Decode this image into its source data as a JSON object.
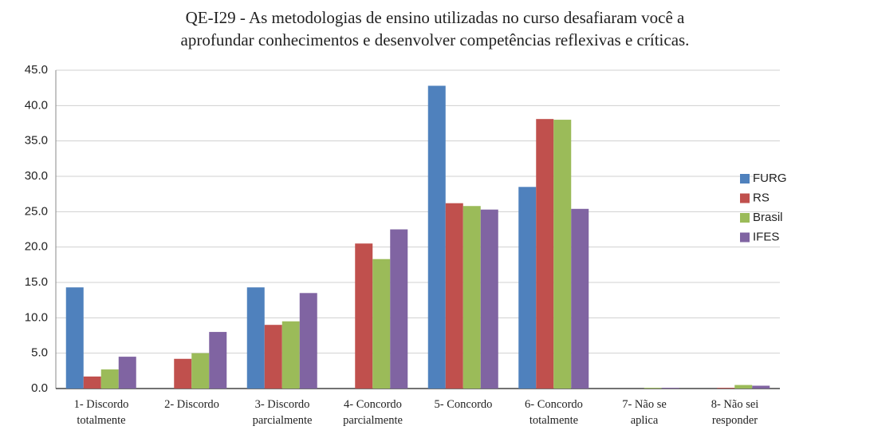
{
  "chart_data": {
    "type": "bar",
    "title": "QE-I29 - As metodologias de ensino utilizadas no curso desafiaram você a\naprofundar conhecimentos e desenvolver competências reflexivas e críticas.",
    "categories": [
      "1- Discordo\ntotalmente",
      "2- Discordo",
      "3- Discordo\nparcialmente",
      "4- Concordo\nparcialmente",
      "5- Concordo",
      "6- Concordo\ntotalmente",
      "7- Não se\naplica",
      "8- Não sei\nresponder"
    ],
    "series": [
      {
        "name": "FURG",
        "color": "#4f81bd",
        "values": [
          14.3,
          0,
          14.3,
          0,
          42.8,
          28.5,
          0,
          0
        ]
      },
      {
        "name": "RS",
        "color": "#c0504d",
        "values": [
          1.7,
          4.2,
          9.0,
          20.5,
          26.2,
          38.1,
          0,
          0.1
        ]
      },
      {
        "name": "Brasil",
        "color": "#9bbb59",
        "values": [
          2.7,
          5.0,
          9.5,
          18.3,
          25.8,
          38.0,
          0.1,
          0.5
        ]
      },
      {
        "name": "IFES",
        "color": "#8064a2",
        "values": [
          4.5,
          8.0,
          13.5,
          22.5,
          25.3,
          25.4,
          0.1,
          0.4
        ]
      }
    ],
    "ylim": [
      0,
      45
    ],
    "yticks": [
      {
        "value": 0,
        "label": "0.0"
      },
      {
        "value": 5,
        "label": "5.0"
      },
      {
        "value": 10,
        "label": "10.0"
      },
      {
        "value": 15,
        "label": "15.0"
      },
      {
        "value": 20,
        "label": "20.0"
      },
      {
        "value": 25,
        "label": "25.0"
      },
      {
        "value": 30,
        "label": "30.0"
      },
      {
        "value": 35,
        "label": "35.0"
      },
      {
        "value": 40,
        "label": "40.0"
      },
      {
        "value": 45,
        "label": "45.0"
      }
    ],
    "grid": true,
    "legend": "right"
  }
}
